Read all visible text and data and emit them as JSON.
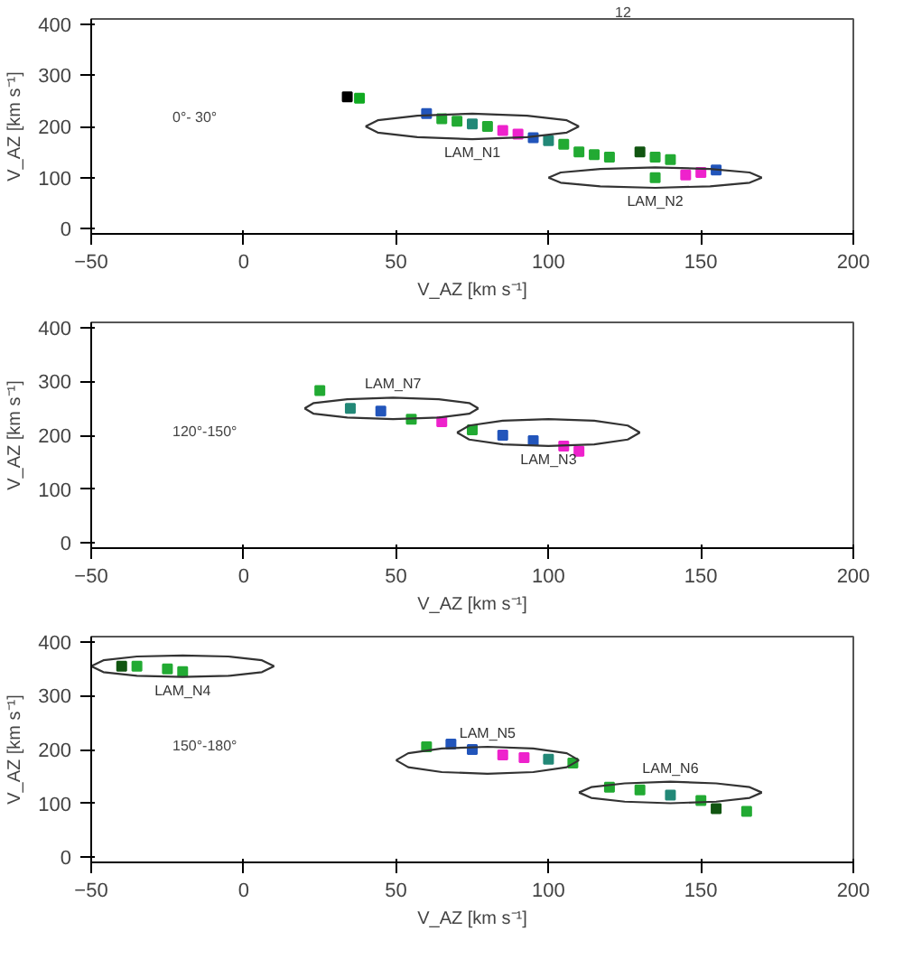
{
  "chart_data": [
    {
      "type": "scatter",
      "xlabel": "V_AZ [km s⁻¹]",
      "ylabel": "V_AZ [km s⁻¹]",
      "xlim": [
        -50,
        200
      ],
      "ylim": [
        -10,
        410
      ],
      "xticks": [
        -50,
        0,
        50,
        100,
        150,
        200
      ],
      "yticks": [
        0,
        100,
        200,
        300,
        400
      ],
      "grid": false,
      "marker": "square",
      "annotations": [
        "0°- 30°",
        "12"
      ],
      "series": [
        {
          "x": [
            34,
            38,
            60,
            65,
            70,
            75,
            80,
            85,
            90,
            95,
            100,
            105,
            110,
            115,
            120,
            130,
            135,
            140,
            135,
            145,
            150,
            155
          ],
          "values": [
            258,
            255,
            225,
            215,
            210,
            205,
            200,
            192,
            185,
            178,
            172,
            165,
            150,
            145,
            140,
            150,
            140,
            135,
            100,
            105,
            110,
            115
          ],
          "colors": [
            "#000000",
            "#11aa22",
            "#2255bb",
            "#22aa33",
            "#22aa33",
            "#228877",
            "#22aa33",
            "#ee22cc",
            "#ee22cc",
            "#2255bb",
            "#228877",
            "#22aa33",
            "#22aa33",
            "#22aa33",
            "#22aa33",
            "#115511",
            "#22aa33",
            "#22aa33",
            "#22aa33",
            "#ee22cc",
            "#ee22cc",
            "#2255bb"
          ]
        },
        {
          "type": "line",
          "marker": "none",
          "color": "#333333",
          "x": [
            40,
            44,
            57,
            75,
            93,
            106,
            110
          ],
          "values": [
            200,
            212,
            221,
            225,
            221,
            212,
            200
          ]
        },
        {
          "type": "line",
          "marker": "none",
          "name": "LAM_N1",
          "color": "#333333",
          "x": [
            40,
            44,
            57,
            75,
            93,
            106,
            110
          ],
          "values": [
            200,
            188,
            179,
            175,
            179,
            188,
            200
          ]
        },
        {
          "type": "line",
          "marker": "none",
          "color": "#333333",
          "x": [
            100,
            104,
            117,
            135,
            153,
            166,
            170
          ],
          "values": [
            100,
            110,
            117,
            120,
            117,
            110,
            100
          ]
        },
        {
          "type": "line",
          "marker": "none",
          "name": "LAM_N2",
          "color": "#333333",
          "x": [
            100,
            104,
            117,
            135,
            153,
            166,
            170
          ],
          "values": [
            100,
            90,
            83,
            80,
            83,
            90,
            100
          ]
        }
      ]
    },
    {
      "type": "scatter",
      "xlabel": "V_AZ [km s⁻¹]",
      "ylabel": "V_AZ [km s⁻¹]",
      "xlim": [
        -50,
        200
      ],
      "ylim": [
        -10,
        410
      ],
      "xticks": [
        -50,
        0,
        50,
        100,
        150,
        200
      ],
      "yticks": [
        0,
        100,
        200,
        300,
        400
      ],
      "grid": false,
      "marker": "square",
      "annotations": [
        "120°-150°"
      ],
      "series": [
        {
          "x": [
            25,
            35,
            45,
            55,
            65,
            75,
            85,
            95,
            105,
            110
          ],
          "values": [
            283,
            250,
            245,
            230,
            225,
            210,
            200,
            190,
            180,
            170
          ],
          "colors": [
            "#22aa33",
            "#228877",
            "#2255bb",
            "#22aa33",
            "#ee22cc",
            "#22aa33",
            "#2255bb",
            "#2255bb",
            "#ee22cc",
            "#ee22cc"
          ]
        },
        {
          "type": "line",
          "marker": "none",
          "color": "#333333",
          "x": [
            20,
            23,
            34,
            49,
            64,
            74,
            77
          ],
          "values": [
            250,
            240,
            233,
            230,
            233,
            240,
            250
          ]
        },
        {
          "type": "line",
          "marker": "none",
          "name": "LAM_N7",
          "color": "#333333",
          "x": [
            20,
            23,
            34,
            49,
            64,
            74,
            77
          ],
          "values": [
            250,
            260,
            267,
            270,
            267,
            260,
            250
          ]
        },
        {
          "type": "line",
          "marker": "none",
          "color": "#333333",
          "x": [
            70,
            74,
            85,
            100,
            115,
            126,
            130
          ],
          "values": [
            205,
            218,
            227,
            230,
            227,
            218,
            205
          ]
        },
        {
          "type": "line",
          "marker": "none",
          "name": "LAM_N3",
          "color": "#333333",
          "x": [
            70,
            74,
            85,
            100,
            115,
            126,
            130
          ],
          "values": [
            205,
            192,
            183,
            180,
            183,
            192,
            205
          ]
        }
      ]
    },
    {
      "type": "scatter",
      "xlabel": "V_AZ [km s⁻¹]",
      "ylabel": "V_AZ [km s⁻¹]",
      "xlim": [
        -50,
        200
      ],
      "ylim": [
        -10,
        410
      ],
      "xticks": [
        -50,
        0,
        50,
        100,
        150,
        200
      ],
      "yticks": [
        0,
        100,
        200,
        300,
        400
      ],
      "grid": false,
      "marker": "square",
      "annotations": [
        "150°-180°"
      ],
      "series": [
        {
          "x": [
            -40,
            -35,
            -25,
            -20,
            60,
            68,
            75,
            85,
            92,
            100,
            108,
            120,
            130,
            140,
            150,
            155,
            165
          ],
          "values": [
            355,
            355,
            350,
            345,
            205,
            210,
            200,
            190,
            185,
            182,
            175,
            130,
            125,
            115,
            105,
            90,
            85
          ],
          "colors": [
            "#115511",
            "#22aa33",
            "#22aa33",
            "#22aa33",
            "#22aa33",
            "#2255bb",
            "#2255bb",
            "#ee22cc",
            "#ee22cc",
            "#228877",
            "#22aa33",
            "#22aa33",
            "#22aa33",
            "#228877",
            "#22aa33",
            "#115511",
            "#22aa33"
          ]
        },
        {
          "type": "line",
          "marker": "none",
          "color": "#333333",
          "x": [
            -50,
            -46,
            -35,
            -20,
            -5,
            6,
            10
          ],
          "values": [
            355,
            366,
            373,
            375,
            373,
            366,
            355
          ]
        },
        {
          "type": "line",
          "marker": "none",
          "name": "LAM_N4",
          "color": "#333333",
          "x": [
            -50,
            -46,
            -35,
            -20,
            -5,
            6,
            10
          ],
          "values": [
            355,
            344,
            337,
            335,
            337,
            344,
            355
          ]
        },
        {
          "type": "line",
          "marker": "none",
          "name": "LAM_N5",
          "color": "#333333",
          "x": [
            50,
            54,
            65,
            80,
            95,
            106,
            110
          ],
          "values": [
            180,
            193,
            202,
            205,
            202,
            193,
            180
          ]
        },
        {
          "type": "line",
          "marker": "none",
          "color": "#333333",
          "x": [
            50,
            54,
            65,
            80,
            95,
            106,
            110
          ],
          "values": [
            180,
            167,
            158,
            155,
            158,
            167,
            180
          ]
        },
        {
          "type": "line",
          "marker": "none",
          "name": "LAM_N6",
          "color": "#333333",
          "x": [
            110,
            114,
            125,
            140,
            155,
            166,
            170
          ],
          "values": [
            120,
            130,
            137,
            140,
            137,
            130,
            120
          ]
        },
        {
          "type": "line",
          "marker": "none",
          "color": "#333333",
          "x": [
            110,
            114,
            125,
            140,
            155,
            166,
            170
          ],
          "values": [
            120,
            110,
            103,
            100,
            103,
            110,
            120
          ]
        }
      ]
    }
  ]
}
